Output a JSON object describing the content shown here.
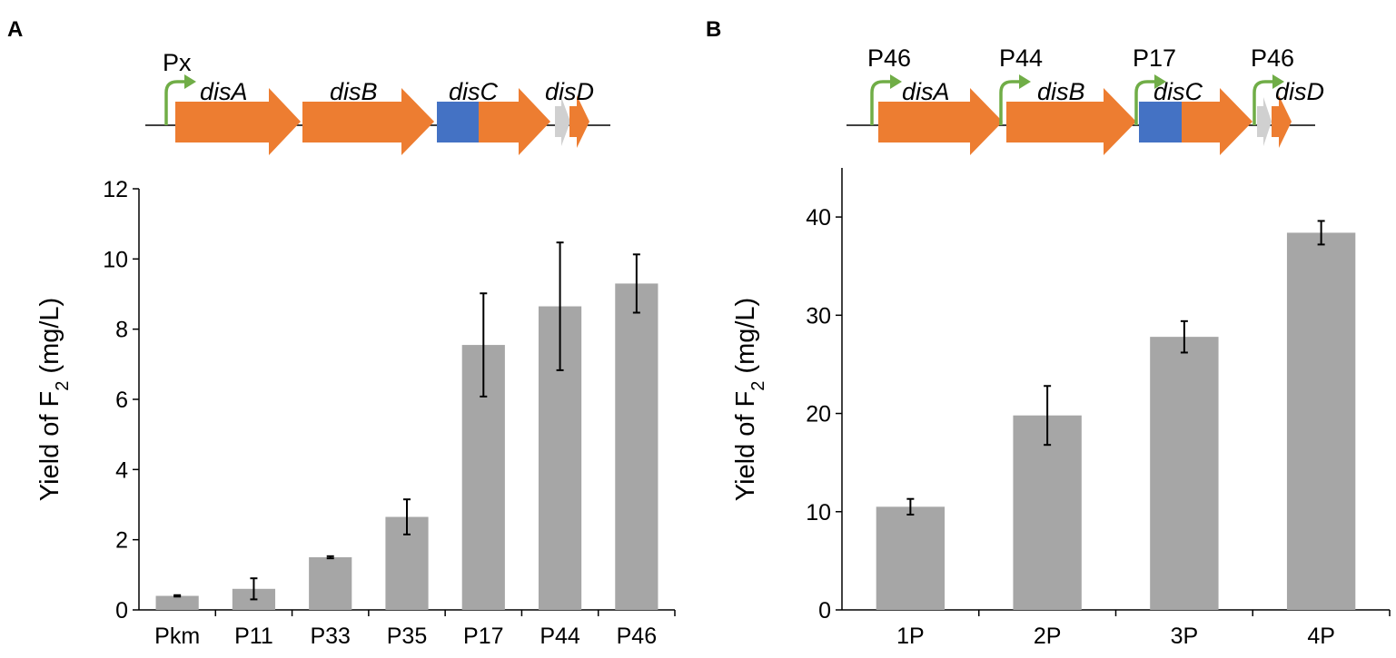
{
  "colors": {
    "bar": "#a6a6a6",
    "gene": "#ed7d31",
    "domain": "#4472c4",
    "small_gene": "#d0d0d0",
    "promoter": "#70ad47",
    "axis": "#000000"
  },
  "panels": [
    {
      "letter": "A",
      "construct": {
        "promoters": [
          "Px"
        ],
        "genes": [
          "disA",
          "disB",
          "disC",
          "disD"
        ]
      }
    },
    {
      "letter": "B",
      "construct": {
        "promoters": [
          "P46",
          "P44",
          "P17",
          "P46"
        ],
        "genes": [
          "disA",
          "disB",
          "disC",
          "disD"
        ]
      }
    }
  ],
  "chart_data": [
    {
      "type": "bar",
      "panel": "A",
      "categories": [
        "Pkm",
        "P11",
        "P33",
        "P35",
        "P17",
        "P44",
        "P46"
      ],
      "values": [
        0.4,
        0.6,
        1.5,
        2.65,
        7.55,
        8.65,
        9.3
      ],
      "errors": [
        0.02,
        0.3,
        0.03,
        0.5,
        1.47,
        1.82,
        0.83
      ],
      "ylabel_main": "Yield of F",
      "ylabel_sub": "2",
      "ylabel_tail": " (mg/L)",
      "ylim": [
        0,
        12
      ],
      "yticks": [
        0,
        2,
        4,
        6,
        8,
        10,
        12
      ],
      "ytick_labels": [
        "0",
        "2",
        "4",
        "6",
        "8",
        "10",
        "12"
      ]
    },
    {
      "type": "bar",
      "panel": "B",
      "categories": [
        "1P",
        "2P",
        "3P",
        "4P"
      ],
      "values": [
        10.5,
        19.8,
        27.8,
        38.4
      ],
      "errors": [
        0.8,
        3.0,
        1.6,
        1.2
      ],
      "ylabel_main": "Yield of F",
      "ylabel_sub": "2",
      "ylabel_tail": " (mg/L)",
      "ylim": [
        0,
        45
      ],
      "yticks": [
        0,
        10,
        20,
        30,
        40
      ],
      "ytick_labels": [
        "0",
        "10",
        "20",
        "30",
        "40"
      ]
    }
  ]
}
